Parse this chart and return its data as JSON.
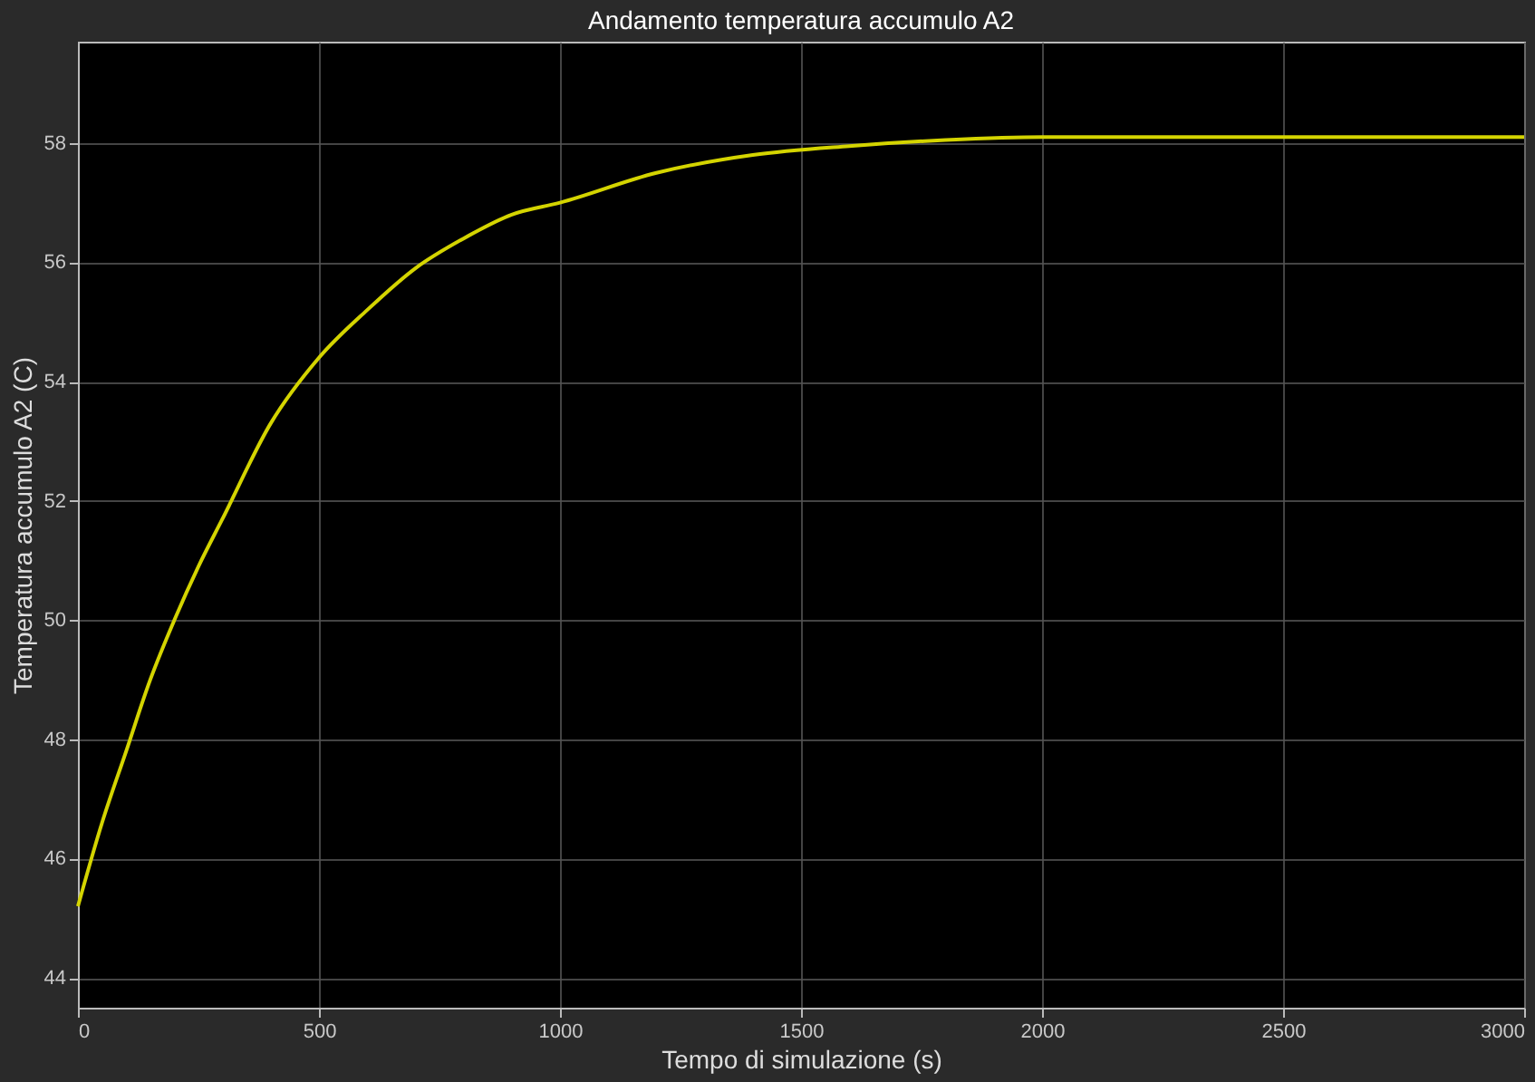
{
  "chart_data": {
    "type": "line",
    "title": "Andamento temperatura accumulo A2",
    "xlabel": "Tempo di simulazione (s)",
    "ylabel": "Temperatura accumulo A2 (C)",
    "x": [
      0,
      50,
      100,
      150,
      200,
      250,
      300,
      400,
      500,
      600,
      700,
      800,
      900,
      1000,
      1200,
      1400,
      1600,
      1800,
      2000,
      2500,
      3000
    ],
    "series": [
      {
        "color": "#d4d400",
        "values": [
          45.2,
          46.6,
          47.8,
          49.0,
          50.0,
          50.9,
          51.7,
          53.3,
          54.4,
          55.2,
          55.9,
          56.4,
          56.8,
          57.0,
          57.5,
          57.8,
          57.95,
          58.05,
          58.1,
          58.1,
          58.1
        ]
      }
    ],
    "xlim": [
      0,
      3000
    ],
    "xticks": [
      0,
      500,
      1000,
      1500,
      2000,
      2500,
      3000
    ],
    "ylim": [
      43.5,
      59.7
    ],
    "yticks": [
      44,
      46,
      48,
      50,
      52,
      54,
      56,
      58
    ],
    "grid": true,
    "marker": "none",
    "line_style": "solid",
    "legend": false
  }
}
